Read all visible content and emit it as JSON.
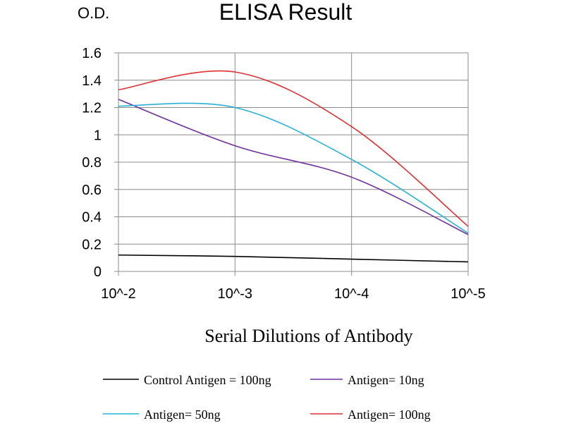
{
  "chart_data": {
    "type": "line",
    "title": "ELISA Result",
    "ylabel": "O.D.",
    "xlabel": "Serial Dilutions of Antibody",
    "categories": [
      "10^-2",
      "10^-3",
      "10^-4",
      "10^-5"
    ],
    "ylim": [
      0,
      1.6
    ],
    "yticks": [
      "0",
      "0.2",
      "0.4",
      "0.6",
      "0.8",
      "1",
      "1.2",
      "1.4",
      "1.6"
    ],
    "grid": true,
    "legend_position": "bottom",
    "series": [
      {
        "name": "Control Antigen = 100ng",
        "color": "#000000",
        "values": [
          0.12,
          0.11,
          0.09,
          0.07
        ]
      },
      {
        "name": "Antigen= 10ng",
        "color": "#7030a0",
        "values": [
          1.26,
          0.92,
          0.69,
          0.27
        ]
      },
      {
        "name": "Antigen= 50ng",
        "color": "#2ab0d8",
        "values": [
          1.21,
          1.2,
          0.82,
          0.28
        ]
      },
      {
        "name": "Antigen= 100ng",
        "color": "#e03030",
        "values": [
          1.33,
          1.46,
          1.06,
          0.33
        ]
      }
    ]
  }
}
